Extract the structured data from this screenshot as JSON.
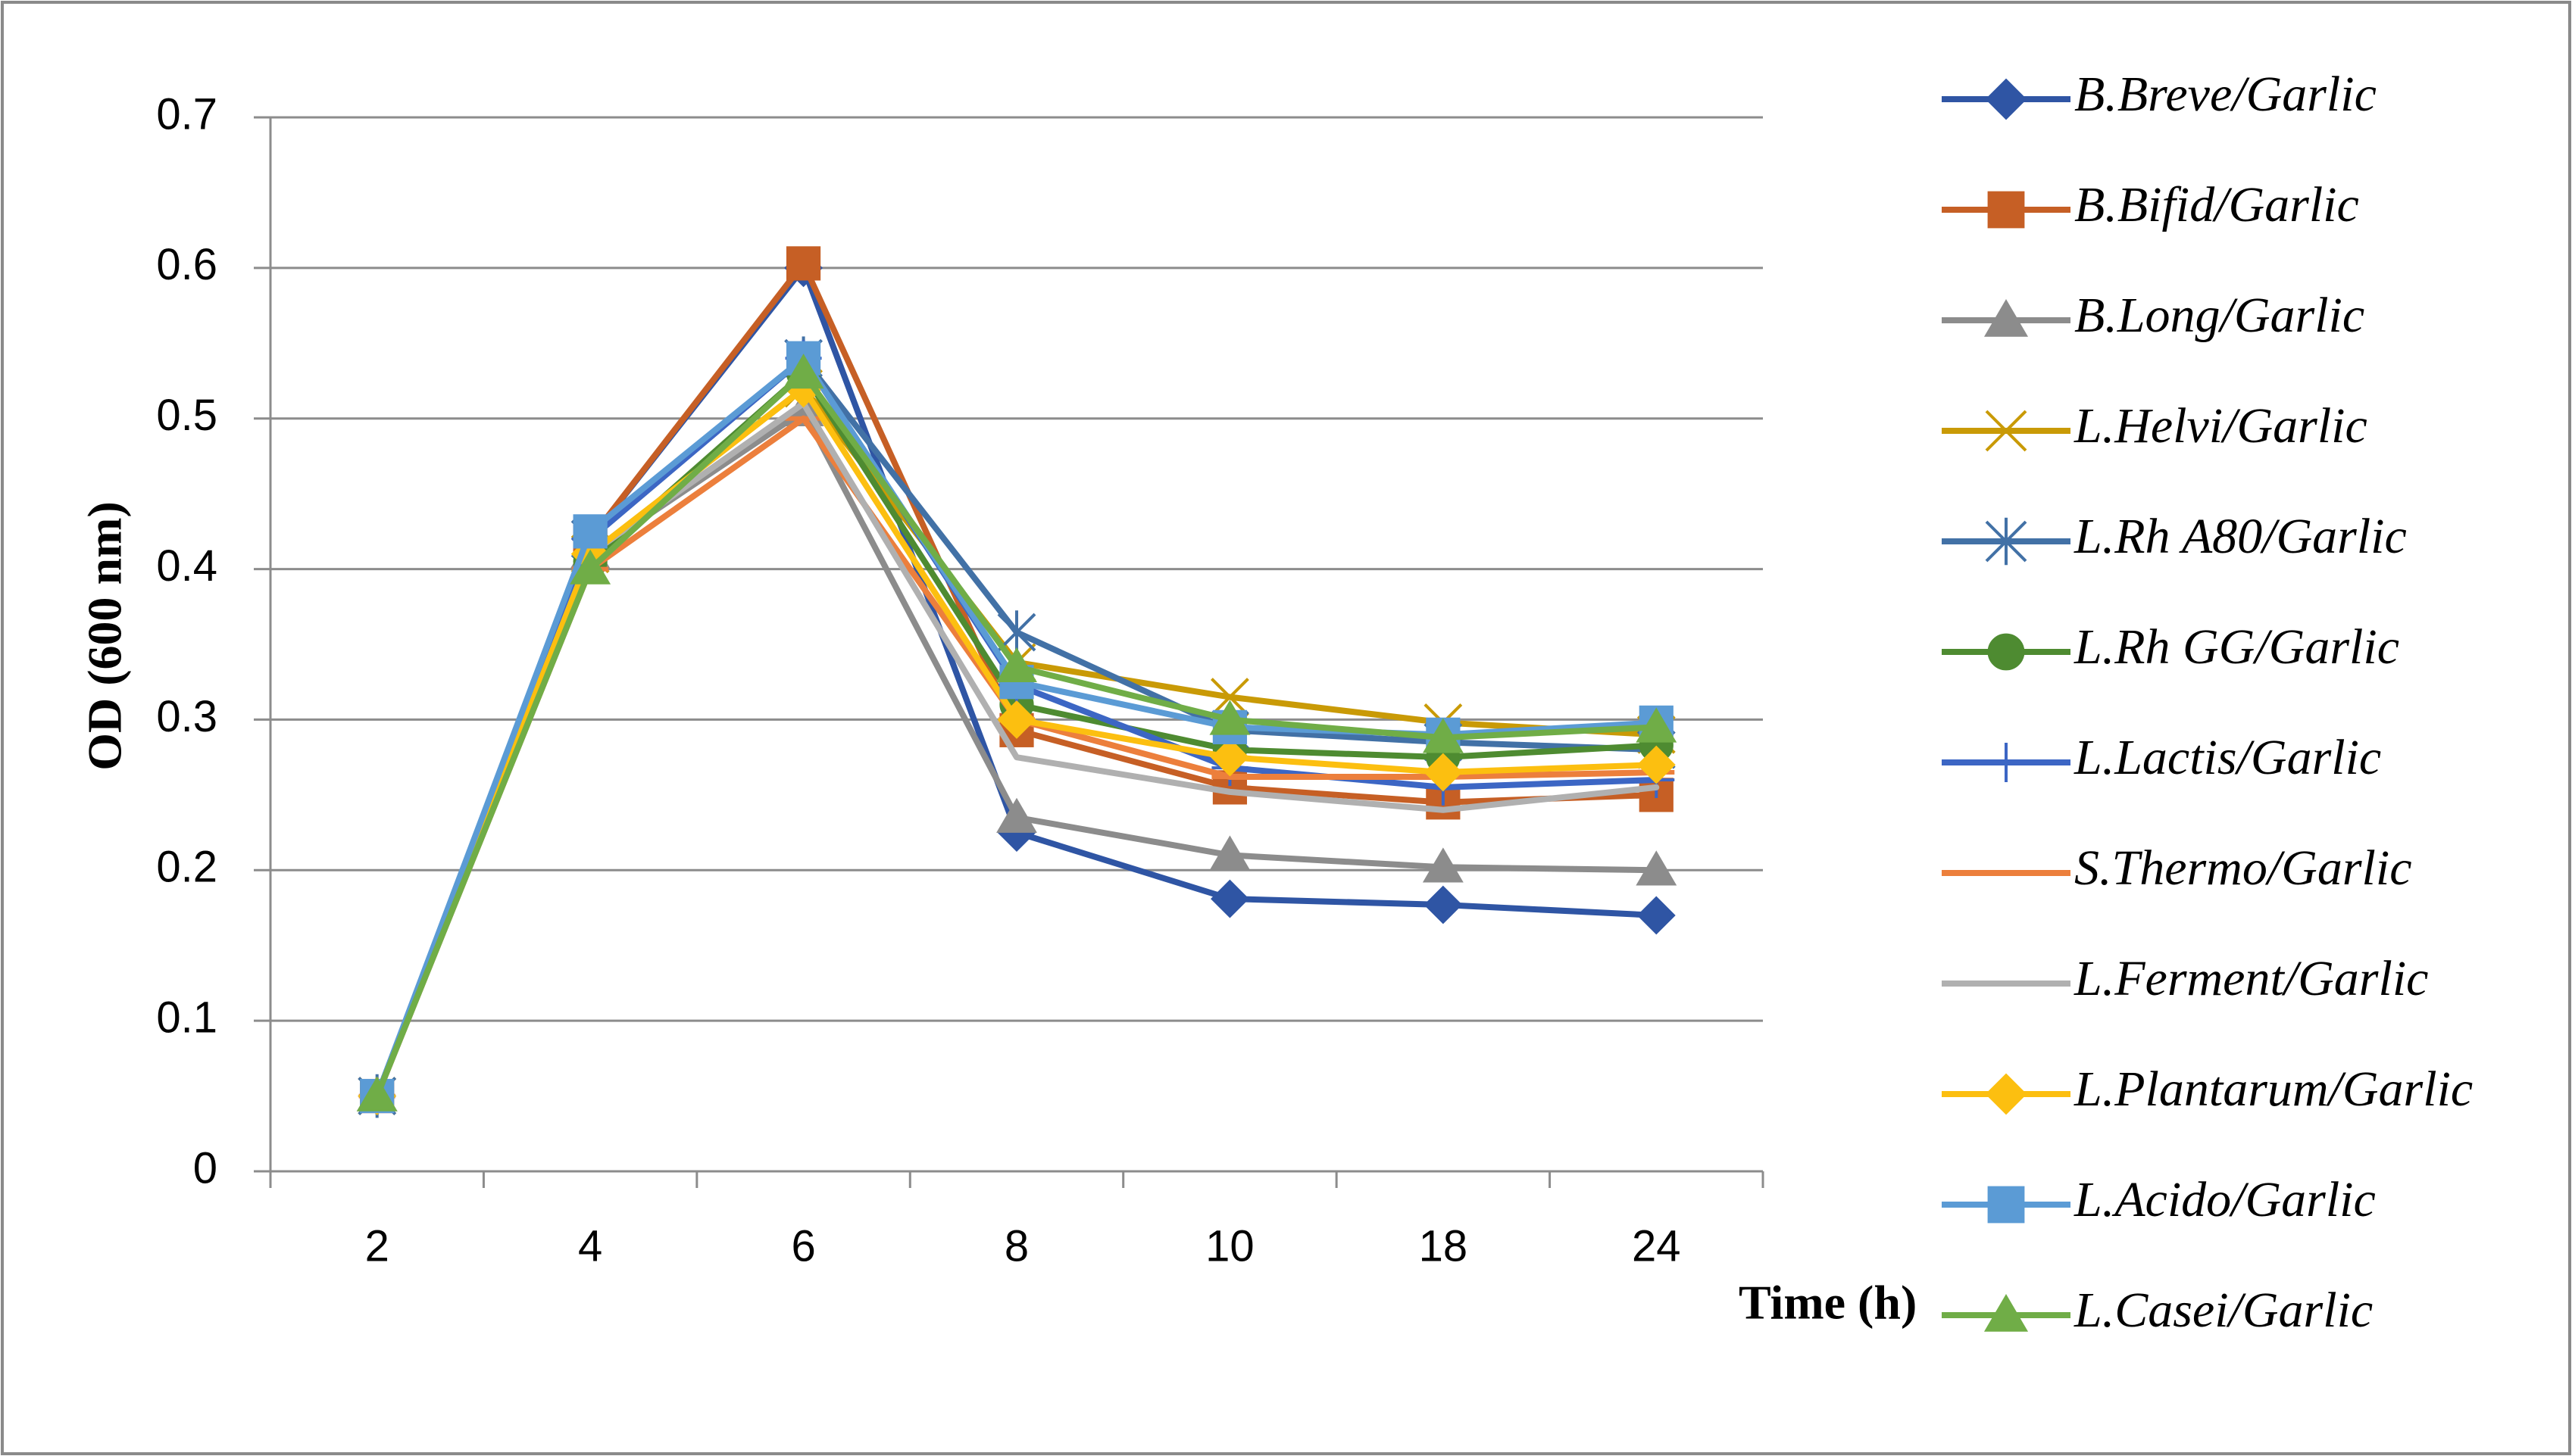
{
  "chart_data": {
    "type": "line",
    "title": "",
    "xlabel": "Time (h)",
    "ylabel": "OD (600 nm)",
    "categories": [
      "2",
      "4",
      "6",
      "8",
      "10",
      "18",
      "24"
    ],
    "yticks": [
      "0",
      "0.1",
      "0.2",
      "0.3",
      "0.4",
      "0.5",
      "0.6",
      "0.7"
    ],
    "ylim": [
      0,
      0.7
    ],
    "grid": true,
    "legend_position": "right",
    "series": [
      {
        "name": "B.Breve/Garlic",
        "color": "#2F55A4",
        "marker": "diamond",
        "values": [
          0.05,
          0.42,
          0.6,
          0.225,
          0.181,
          0.177,
          0.17
        ]
      },
      {
        "name": "B.Bifid/Garlic",
        "color": "#C65F25",
        "marker": "square",
        "values": [
          0.05,
          0.42,
          0.603,
          0.293,
          0.255,
          0.245,
          0.25
        ]
      },
      {
        "name": "B.Long/Garlic",
        "color": "#8C8C8C",
        "marker": "triangle",
        "values": [
          0.05,
          0.41,
          0.505,
          0.235,
          0.21,
          0.202,
          0.2
        ]
      },
      {
        "name": "L.Helvi/Garlic",
        "color": "#C99A06",
        "marker": "x",
        "values": [
          0.05,
          0.41,
          0.52,
          0.338,
          0.315,
          0.298,
          0.29
        ]
      },
      {
        "name": "L.Rh A80/Garlic",
        "color": "#4271A6",
        "marker": "star",
        "values": [
          0.05,
          0.42,
          0.54,
          0.358,
          0.293,
          0.285,
          0.28
        ]
      },
      {
        "name": "L.Rh GG/Garlic",
        "color": "#4E8B31",
        "marker": "circle",
        "values": [
          0.05,
          0.405,
          0.53,
          0.31,
          0.28,
          0.275,
          0.283
        ]
      },
      {
        "name": "L.Lactis/Garlic",
        "color": "#3C66C4",
        "marker": "plus",
        "values": [
          0.05,
          0.42,
          0.54,
          0.323,
          0.268,
          0.255,
          0.26
        ]
      },
      {
        "name": "S.Thermo/Garlic",
        "color": "#EC7F3C",
        "marker": "dash",
        "values": [
          0.05,
          0.4,
          0.5,
          0.3,
          0.262,
          0.262,
          0.265
        ]
      },
      {
        "name": "L.Ferment/Garlic",
        "color": "#B0B0B0",
        "marker": "none",
        "values": [
          0.05,
          0.41,
          0.51,
          0.275,
          0.252,
          0.24,
          0.255
        ]
      },
      {
        "name": "L.Plantarum/Garlic",
        "color": "#FCBF10",
        "marker": "diamond",
        "values": [
          0.05,
          0.41,
          0.52,
          0.3,
          0.275,
          0.265,
          0.27
        ]
      },
      {
        "name": "L.Acido/Garlic",
        "color": "#5B9BD5",
        "marker": "square",
        "values": [
          0.05,
          0.425,
          0.54,
          0.325,
          0.295,
          0.29,
          0.298
        ]
      },
      {
        "name": "L.Casei/Garlic",
        "color": "#70AD47",
        "marker": "triangle",
        "values": [
          0.05,
          0.4,
          0.53,
          0.335,
          0.3,
          0.288,
          0.295
        ]
      }
    ]
  }
}
